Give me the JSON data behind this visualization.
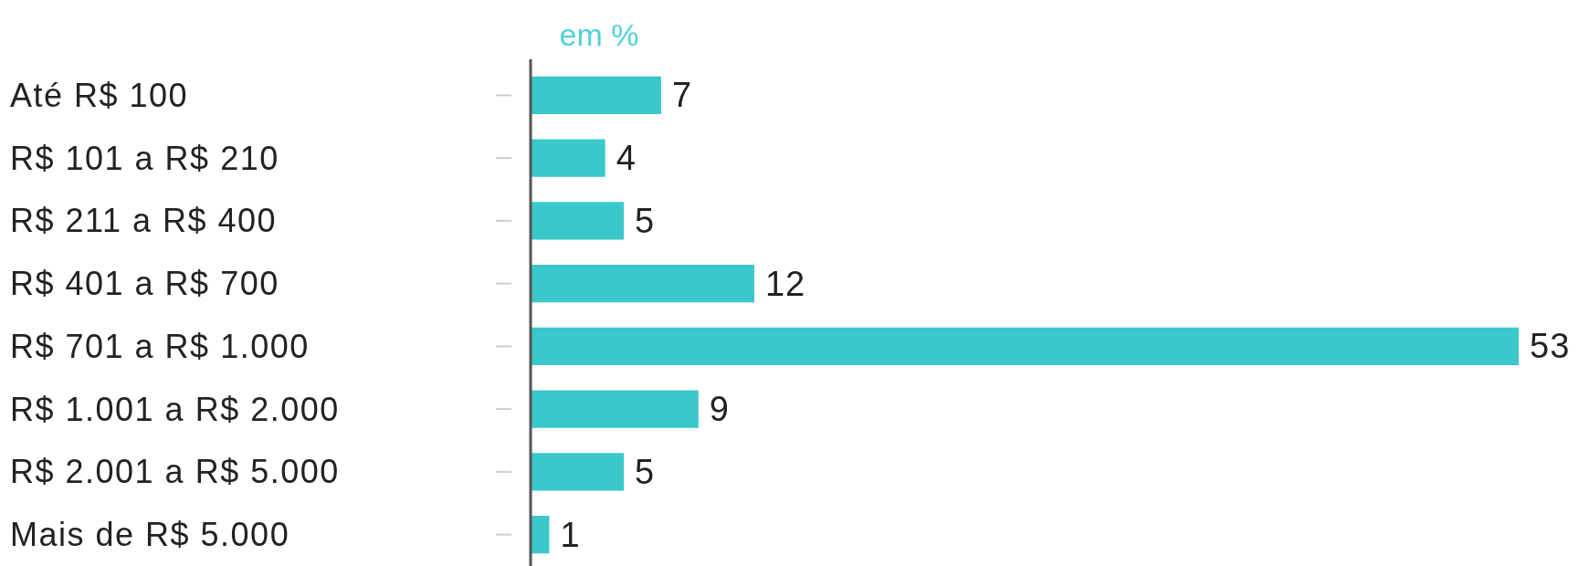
{
  "chart_data": {
    "type": "bar",
    "orientation": "horizontal",
    "subtitle": "em %",
    "categories": [
      "Até R$ 100",
      "R$ 101 a R$ 210",
      "R$ 211 a R$ 400",
      "R$ 401 a R$ 700",
      "R$ 701 a R$ 1.000",
      "R$ 1.001 a R$ 2.000",
      "R$ 2.001 a R$ 5.000",
      "Mais de R$ 5.000"
    ],
    "values": [
      7,
      4,
      5,
      12,
      53,
      9,
      5,
      1
    ],
    "color": "#3ac8cb",
    "data_labels": true
  }
}
